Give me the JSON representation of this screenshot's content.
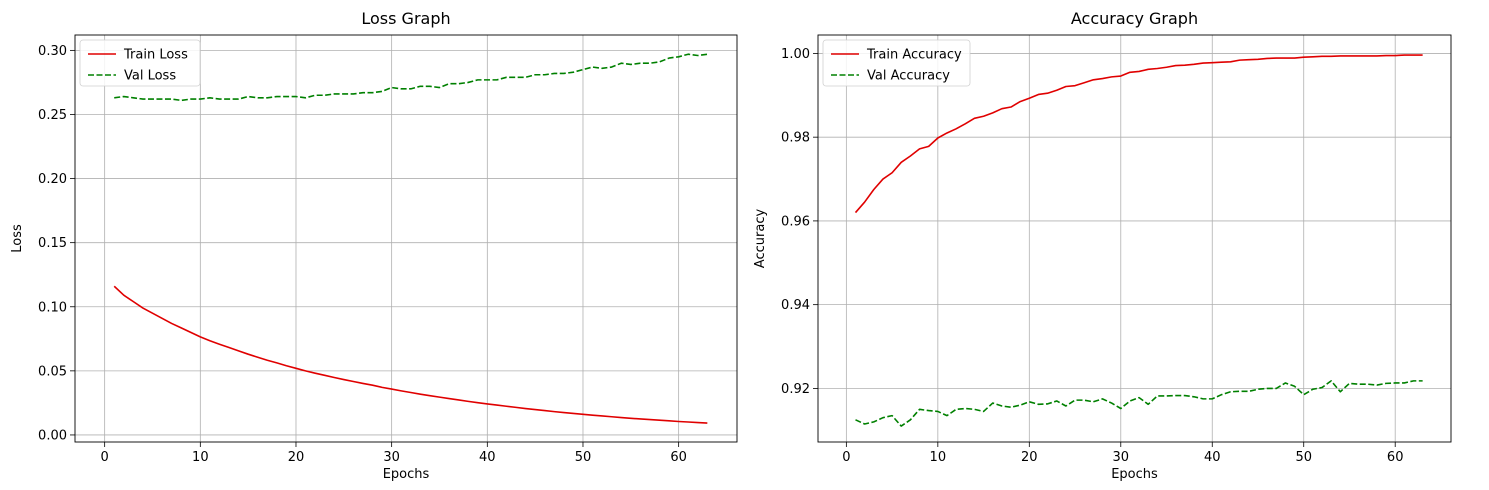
{
  "colors": {
    "train": "#e00000",
    "val": "#008000",
    "grid": "#b0b0b0",
    "axis": "#000000"
  },
  "chart_data": [
    {
      "type": "line",
      "title": "Loss Graph",
      "xlabel": "Epochs",
      "ylabel": "Loss",
      "xlim": [
        -3.1,
        66.1
      ],
      "ylim": [
        -0.0055,
        0.312
      ],
      "xticks": [
        0,
        10,
        20,
        30,
        40,
        50,
        60
      ],
      "xtick_labels": [
        "0",
        "10",
        "20",
        "30",
        "40",
        "50",
        "60"
      ],
      "yticks": [
        0.0,
        0.05,
        0.1,
        0.15,
        0.2,
        0.25,
        0.3
      ],
      "ytick_labels": [
        "0.00",
        "0.05",
        "0.10",
        "0.15",
        "0.20",
        "0.25",
        "0.30"
      ],
      "grid": true,
      "legend_position": "top-left",
      "x": [
        1,
        2,
        3,
        4,
        5,
        6,
        7,
        8,
        9,
        10,
        11,
        12,
        13,
        14,
        15,
        16,
        17,
        18,
        19,
        20,
        21,
        22,
        23,
        24,
        25,
        26,
        27,
        28,
        29,
        30,
        31,
        32,
        33,
        34,
        35,
        36,
        37,
        38,
        39,
        40,
        41,
        42,
        43,
        44,
        45,
        46,
        47,
        48,
        49,
        50,
        51,
        52,
        53,
        54,
        55,
        56,
        57,
        58,
        59,
        60,
        61,
        62,
        63
      ],
      "series": [
        {
          "name": "Train Loss",
          "style": "solid",
          "values": [
            0.116,
            0.109,
            0.104,
            0.099,
            0.095,
            0.091,
            0.087,
            0.0835,
            0.08,
            0.0765,
            0.0735,
            0.0708,
            0.0682,
            0.0656,
            0.063,
            0.0606,
            0.0583,
            0.0562,
            0.054,
            0.052,
            0.05,
            0.0482,
            0.0465,
            0.0448,
            0.0432,
            0.0417,
            0.0402,
            0.0388,
            0.0371,
            0.0358,
            0.0344,
            0.0331,
            0.0318,
            0.0306,
            0.0295,
            0.0284,
            0.0273,
            0.0262,
            0.0252,
            0.0242,
            0.0233,
            0.0224,
            0.0215,
            0.0206,
            0.0198,
            0.019,
            0.0182,
            0.0175,
            0.0168,
            0.0161,
            0.0154,
            0.0148,
            0.0142,
            0.0136,
            0.013,
            0.0125,
            0.012,
            0.0115,
            0.011,
            0.0105,
            0.0101,
            0.0097,
            0.0093
          ]
        },
        {
          "name": "Val Loss",
          "style": "dashed",
          "values": [
            0.263,
            0.264,
            0.263,
            0.262,
            0.262,
            0.262,
            0.262,
            0.261,
            0.262,
            0.262,
            0.263,
            0.262,
            0.262,
            0.262,
            0.264,
            0.263,
            0.263,
            0.264,
            0.264,
            0.264,
            0.263,
            0.265,
            0.265,
            0.266,
            0.266,
            0.266,
            0.267,
            0.267,
            0.268,
            0.271,
            0.27,
            0.27,
            0.272,
            0.272,
            0.271,
            0.274,
            0.274,
            0.275,
            0.277,
            0.277,
            0.277,
            0.279,
            0.279,
            0.279,
            0.281,
            0.281,
            0.282,
            0.282,
            0.283,
            0.285,
            0.287,
            0.286,
            0.287,
            0.29,
            0.289,
            0.29,
            0.29,
            0.291,
            0.294,
            0.295,
            0.297,
            0.296,
            0.297
          ]
        }
      ]
    },
    {
      "type": "line",
      "title": "Accuracy Graph",
      "xlabel": "Epochs",
      "ylabel": "Accuracy",
      "xlim": [
        -3.1,
        66.1
      ],
      "ylim": [
        0.9072,
        1.0044
      ],
      "xticks": [
        0,
        10,
        20,
        30,
        40,
        50,
        60
      ],
      "xtick_labels": [
        "0",
        "10",
        "20",
        "30",
        "40",
        "50",
        "60"
      ],
      "yticks": [
        0.92,
        0.94,
        0.96,
        0.98,
        1.0
      ],
      "ytick_labels": [
        "0.92",
        "0.94",
        "0.96",
        "0.98",
        "1.00"
      ],
      "grid": true,
      "legend_position": "top-left",
      "x": [
        1,
        2,
        3,
        4,
        5,
        6,
        7,
        8,
        9,
        10,
        11,
        12,
        13,
        14,
        15,
        16,
        17,
        18,
        19,
        20,
        21,
        22,
        23,
        24,
        25,
        26,
        27,
        28,
        29,
        30,
        31,
        32,
        33,
        34,
        35,
        36,
        37,
        38,
        39,
        40,
        41,
        42,
        43,
        44,
        45,
        46,
        47,
        48,
        49,
        50,
        51,
        52,
        53,
        54,
        55,
        56,
        57,
        58,
        59,
        60,
        61,
        62,
        63
      ],
      "series": [
        {
          "name": "Train Accuracy",
          "style": "solid",
          "values": [
            0.962,
            0.9645,
            0.9675,
            0.97,
            0.9715,
            0.974,
            0.9755,
            0.9772,
            0.9778,
            0.9798,
            0.981,
            0.982,
            0.9832,
            0.9845,
            0.985,
            0.9858,
            0.9868,
            0.9872,
            0.9885,
            0.9893,
            0.9902,
            0.9905,
            0.9912,
            0.9921,
            0.9923,
            0.993,
            0.9937,
            0.994,
            0.9944,
            0.9946,
            0.9955,
            0.9957,
            0.9962,
            0.9964,
            0.9967,
            0.9971,
            0.9972,
            0.9974,
            0.9977,
            0.9978,
            0.9979,
            0.998,
            0.9984,
            0.9985,
            0.9986,
            0.9988,
            0.9989,
            0.9989,
            0.9989,
            0.9991,
            0.9992,
            0.9993,
            0.9993,
            0.9994,
            0.9994,
            0.9994,
            0.9994,
            0.9994,
            0.9995,
            0.9995,
            0.9996,
            0.9996,
            0.9996
          ]
        },
        {
          "name": "Val Accuracy",
          "style": "dashed",
          "values": [
            0.9125,
            0.9115,
            0.912,
            0.913,
            0.9135,
            0.911,
            0.9125,
            0.915,
            0.9147,
            0.9145,
            0.9135,
            0.915,
            0.9152,
            0.915,
            0.9145,
            0.9165,
            0.9158,
            0.9155,
            0.916,
            0.9168,
            0.9162,
            0.9163,
            0.917,
            0.9158,
            0.9172,
            0.9172,
            0.9168,
            0.9175,
            0.9165,
            0.9152,
            0.917,
            0.9178,
            0.9162,
            0.9182,
            0.9182,
            0.9183,
            0.9183,
            0.918,
            0.9175,
            0.9175,
            0.9185,
            0.9192,
            0.9193,
            0.9193,
            0.9198,
            0.92,
            0.92,
            0.9213,
            0.9205,
            0.9185,
            0.9198,
            0.9202,
            0.9218,
            0.9192,
            0.9212,
            0.921,
            0.921,
            0.9208,
            0.9212,
            0.9213,
            0.9213,
            0.9218,
            0.9218
          ]
        }
      ]
    }
  ]
}
